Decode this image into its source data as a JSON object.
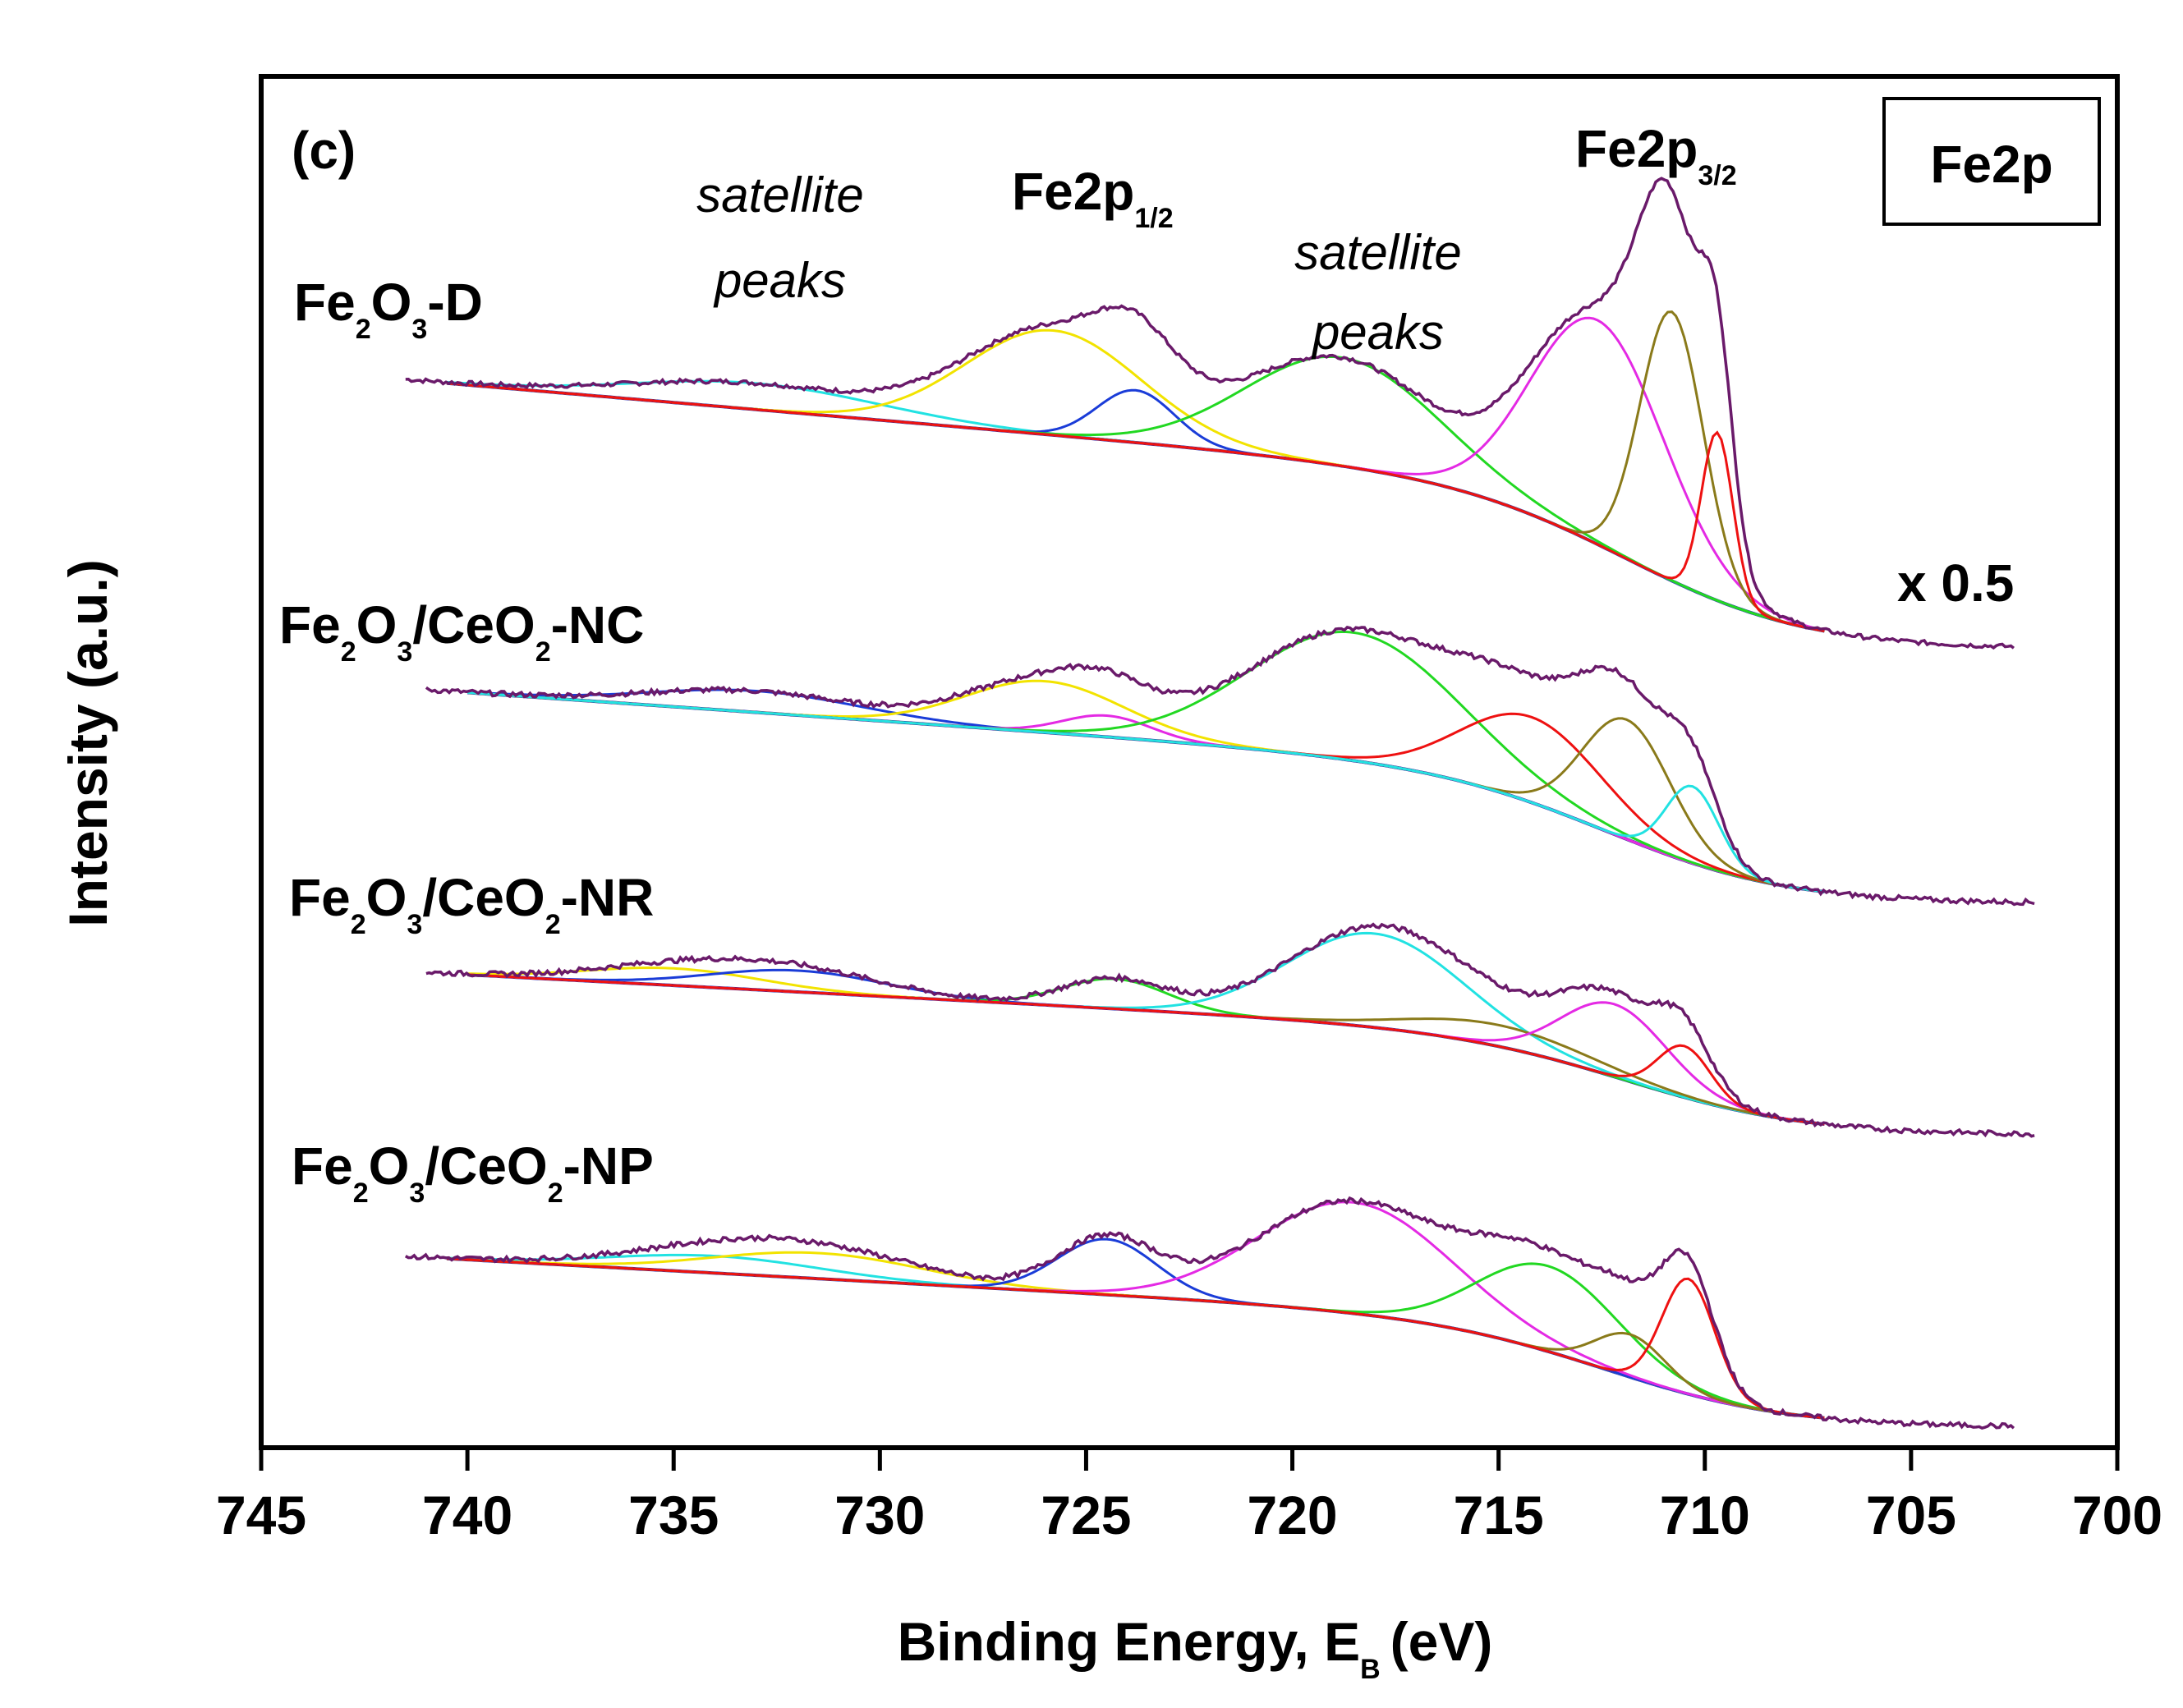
{
  "chart_data": {
    "type": "line",
    "panel_label": "(c)",
    "title_box": "Fe2p",
    "xlabel": "Binding Energy, E",
    "xlabel_sub": "B",
    "xlabel_unit": "(eV)",
    "ylabel": "Intensity (a.u.)",
    "xlim": [
      745,
      700
    ],
    "x_ticks": [
      745,
      740,
      735,
      730,
      725,
      720,
      715,
      710,
      705,
      700
    ],
    "tick_labels": [
      "745",
      "740",
      "735",
      "730",
      "725",
      "720",
      "715",
      "710",
      "705",
      "700"
    ],
    "y_ticks_shown": false,
    "annotations": {
      "fe2p12_main": "Fe2p",
      "fe2p12_sub": "1/2",
      "fe2p32_main": "Fe2p",
      "fe2p32_sub": "3/2",
      "satellite_word": "satellite",
      "peaks_word": "peaks",
      "scale_note": "x 0.5"
    },
    "colors": {
      "envelope": "#6a1a6a",
      "background": "#1a1aa8",
      "yellow": "#f2e300",
      "blue": "#1a3cd8",
      "green": "#22d822",
      "magenta": "#e42ae4",
      "olive": "#8a7a1a",
      "red": "#ee1111",
      "cyan": "#22e2e2"
    },
    "series": [
      {
        "name": "Fe2O3-D",
        "label_parts": [
          "Fe",
          "2",
          "O",
          "3",
          "-D"
        ],
        "scale": "x 0.5",
        "x_range": [
          741.5,
          702.5
        ],
        "baseline_high": 0.72,
        "baseline_low": 0.0,
        "step_center": 711.5,
        "components": [
          {
            "color": "cyan",
            "center": 733.0,
            "amplitude": 0.07,
            "fwhm": 7.0
          },
          {
            "color": "yellow",
            "center": 725.8,
            "amplitude": 0.28,
            "fwhm": 5.0
          },
          {
            "color": "blue",
            "center": 723.8,
            "amplitude": 0.14,
            "fwhm": 2.2
          },
          {
            "color": "green",
            "center": 718.8,
            "amplitude": 0.29,
            "fwhm": 5.5
          },
          {
            "color": "magenta",
            "center": 712.6,
            "amplitude": 0.6,
            "fwhm": 3.8
          },
          {
            "color": "olive",
            "center": 710.8,
            "amplitude": 0.72,
            "fwhm": 1.8
          },
          {
            "color": "red",
            "center": 709.7,
            "amplitude": 0.45,
            "fwhm": 0.9
          }
        ]
      },
      {
        "name": "Fe2O3/CeO2-NC",
        "label_parts": [
          "Fe",
          "2",
          "O",
          "3",
          "/CeO",
          "2",
          "-NC"
        ],
        "x_range": [
          741.0,
          702.0
        ],
        "baseline_high": 0.5,
        "baseline_low": 0.0,
        "step_center": 712.0,
        "components": [
          {
            "color": "blue",
            "center": 733.0,
            "amplitude": 0.05,
            "fwhm": 6.0
          },
          {
            "color": "yellow",
            "center": 726.0,
            "amplitude": 0.12,
            "fwhm": 4.5
          },
          {
            "color": "magenta",
            "center": 724.5,
            "amplitude": 0.05,
            "fwhm": 2.5
          },
          {
            "color": "green",
            "center": 718.5,
            "amplitude": 0.3,
            "fwhm": 6.0
          },
          {
            "color": "red",
            "center": 714.2,
            "amplitude": 0.2,
            "fwhm": 4.0
          },
          {
            "color": "olive",
            "center": 711.9,
            "amplitude": 0.28,
            "fwhm": 2.5
          },
          {
            "color": "cyan",
            "center": 710.3,
            "amplitude": 0.18,
            "fwhm": 1.5
          }
        ]
      },
      {
        "name": "Fe2O3/CeO2-NR",
        "label_parts": [
          "Fe",
          "2",
          "O",
          "3",
          "/CeO",
          "2",
          "-NR"
        ],
        "x_range": [
          741.0,
          702.0
        ],
        "baseline_high": 0.38,
        "baseline_low": 0.0,
        "step_center": 711.5,
        "components": [
          {
            "color": "yellow",
            "center": 735.0,
            "amplitude": 0.04,
            "fwhm": 5.0
          },
          {
            "color": "blue",
            "center": 732.0,
            "amplitude": 0.05,
            "fwhm": 5.0
          },
          {
            "color": "green",
            "center": 724.3,
            "amplitude": 0.07,
            "fwhm": 3.0
          },
          {
            "color": "cyan",
            "center": 718.0,
            "amplitude": 0.22,
            "fwhm": 5.0
          },
          {
            "color": "olive",
            "center": 715.0,
            "amplitude": 0.05,
            "fwhm": 5.0
          },
          {
            "color": "magenta",
            "center": 712.2,
            "amplitude": 0.17,
            "fwhm": 3.0
          },
          {
            "color": "red",
            "center": 710.5,
            "amplitude": 0.12,
            "fwhm": 1.5
          }
        ]
      },
      {
        "name": "Fe2O3/CeO2-NP",
        "label_parts": [
          "Fe",
          "2",
          "O",
          "3",
          "/CeO",
          "2",
          "-NP"
        ],
        "x_range": [
          741.5,
          702.5
        ],
        "baseline_high": 0.4,
        "baseline_low": 0.0,
        "step_center": 712.0,
        "components": [
          {
            "color": "cyan",
            "center": 734.0,
            "amplitude": 0.04,
            "fwhm": 6.0
          },
          {
            "color": "yellow",
            "center": 731.5,
            "amplitude": 0.06,
            "fwhm": 6.0
          },
          {
            "color": "blue",
            "center": 724.5,
            "amplitude": 0.13,
            "fwhm": 2.8
          },
          {
            "color": "magenta",
            "center": 718.5,
            "amplitude": 0.26,
            "fwhm": 5.5
          },
          {
            "color": "green",
            "center": 713.8,
            "amplitude": 0.2,
            "fwhm": 4.0
          },
          {
            "color": "olive",
            "center": 711.8,
            "amplitude": 0.1,
            "fwhm": 2.0
          },
          {
            "color": "red",
            "center": 710.4,
            "amplitude": 0.27,
            "fwhm": 1.5
          }
        ]
      }
    ]
  }
}
